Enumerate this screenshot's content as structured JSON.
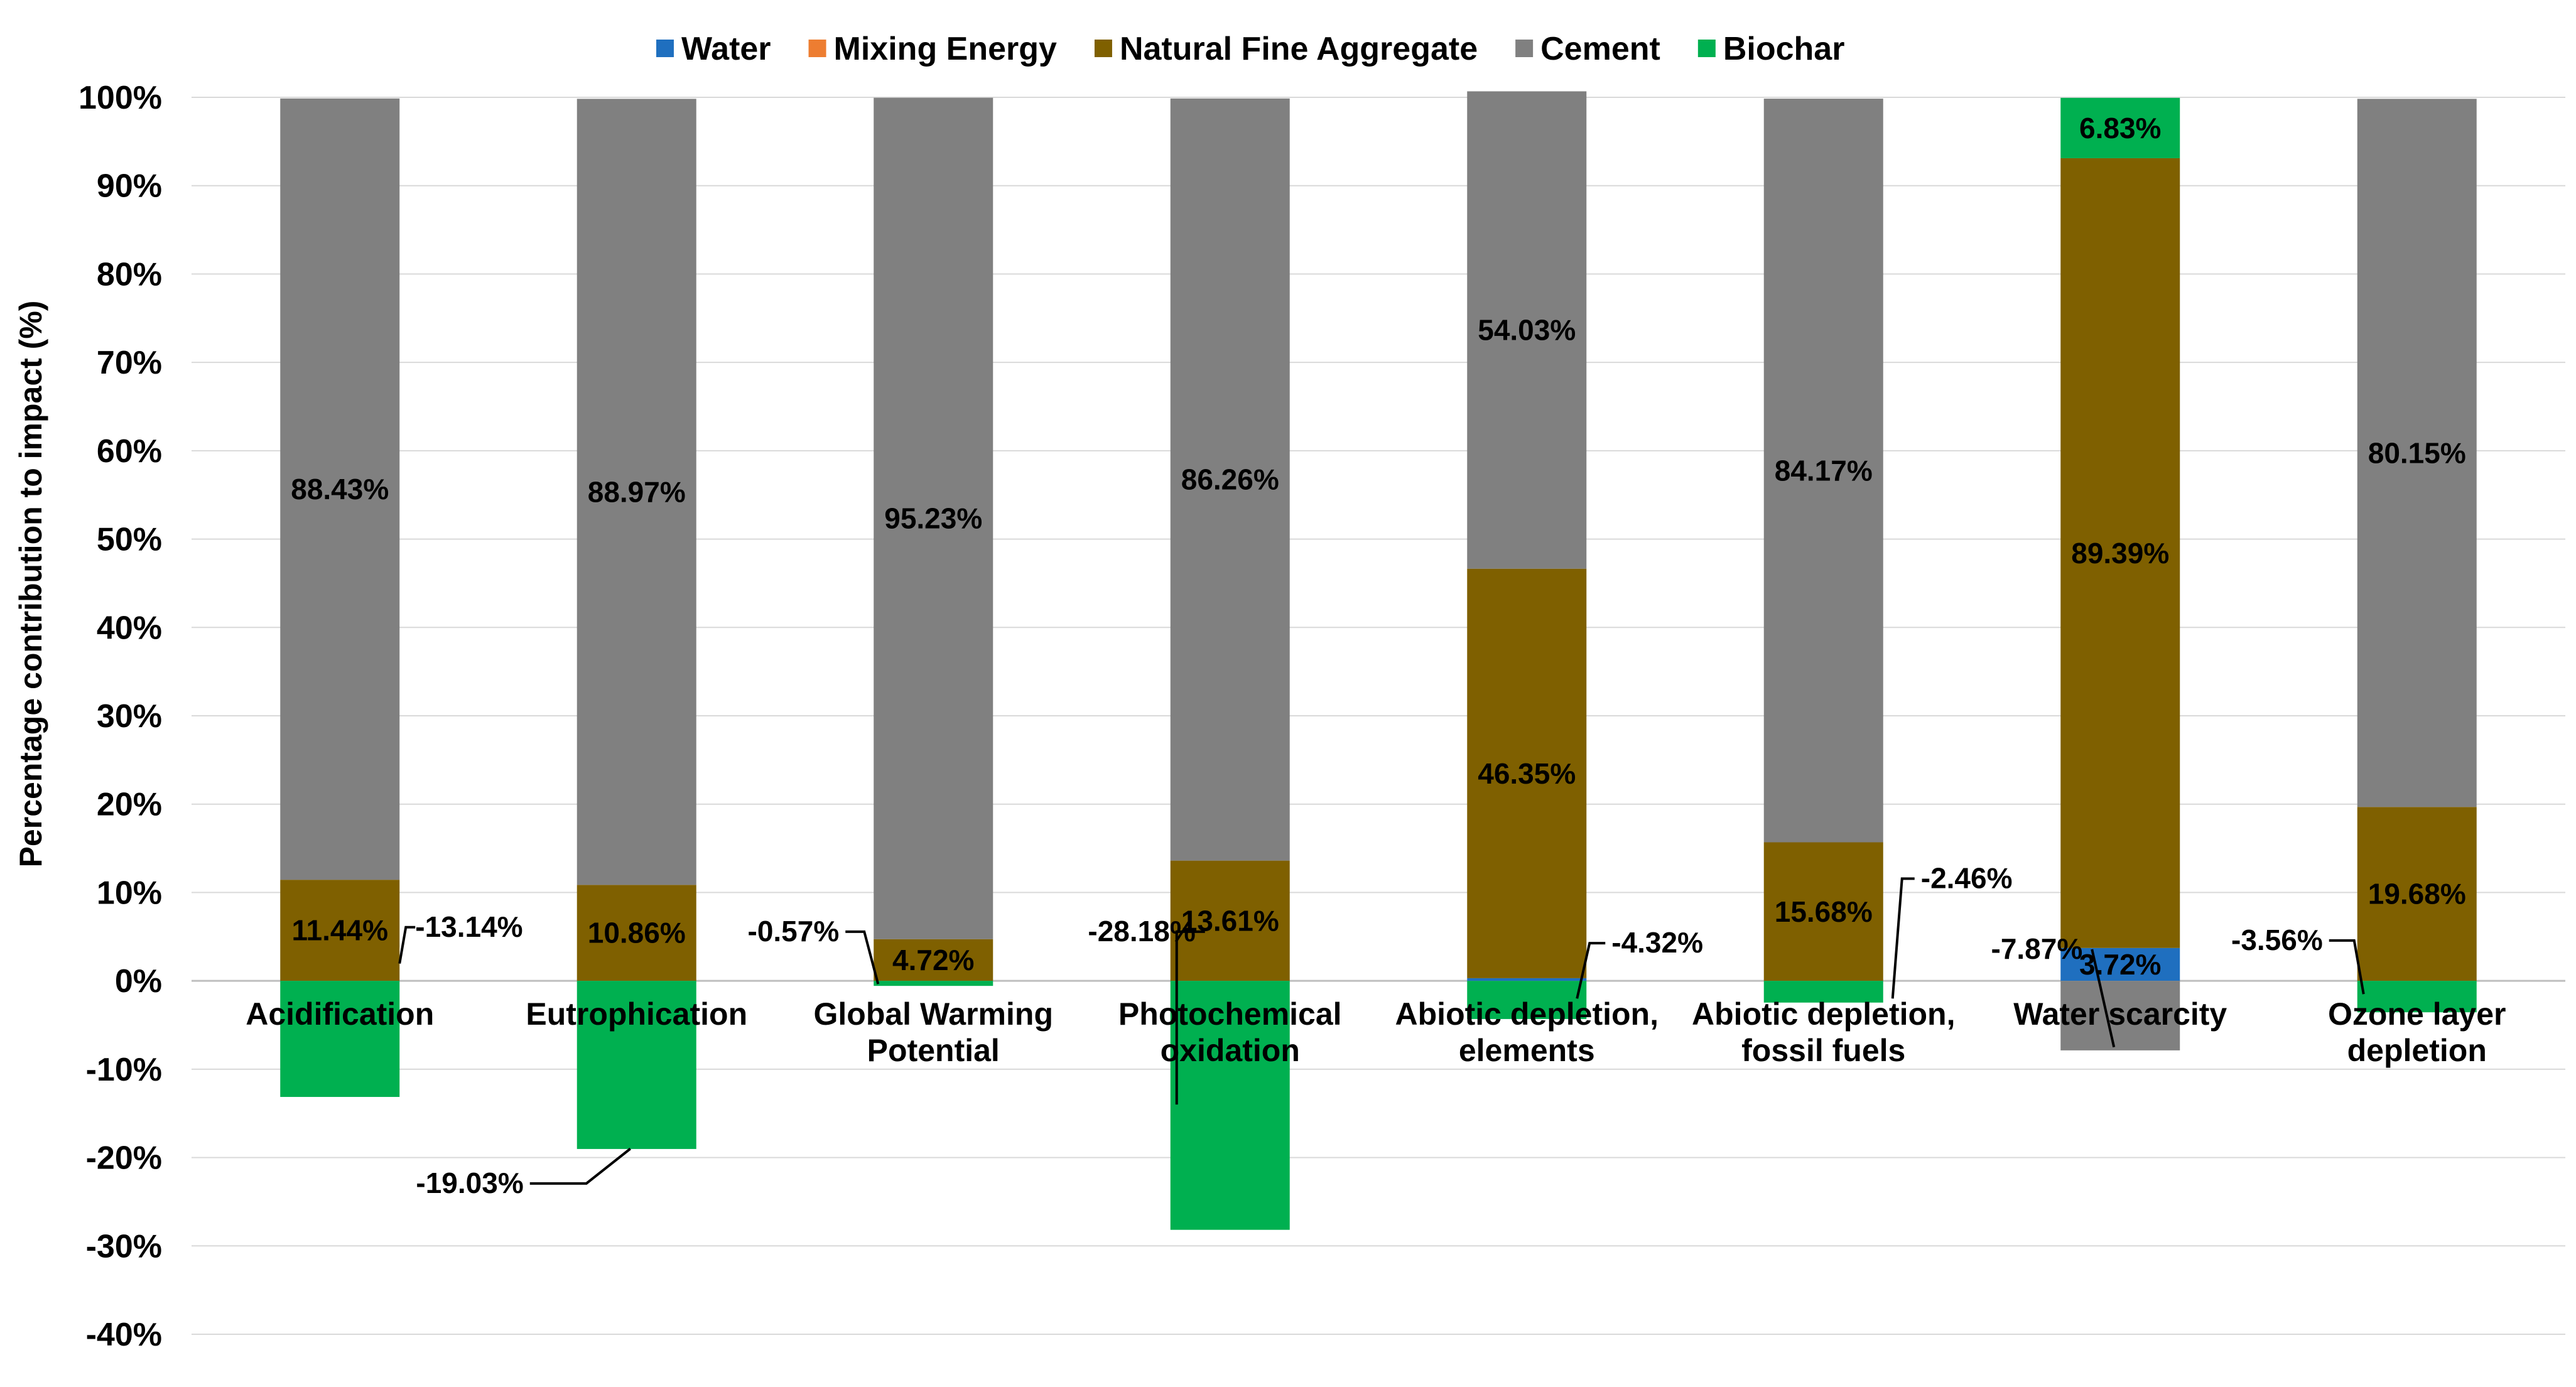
{
  "chart_data": {
    "type": "bar",
    "stacked": true,
    "title": "",
    "xlabel": "",
    "ylabel": "Percentage contribution to impact (%)",
    "ylim": [
      -40,
      100
    ],
    "ytick_step": 10,
    "yticks": [
      "100%",
      "90%",
      "80%",
      "70%",
      "60%",
      "50%",
      "40%",
      "30%",
      "20%",
      "10%",
      "0%",
      "-10%",
      "-20%",
      "-30%",
      "-40%"
    ],
    "grid": true,
    "legend_position": "top",
    "categories": [
      [
        "Acidification"
      ],
      [
        "Eutrophication"
      ],
      [
        "Global Warming",
        "Potential"
      ],
      [
        "Photochemical",
        "oxidation"
      ],
      [
        "Abiotic depletion,",
        "elements"
      ],
      [
        "Abiotic depletion,",
        "fossil fuels"
      ],
      [
        "Water scarcity"
      ],
      [
        "Ozone layer",
        "depletion"
      ]
    ],
    "series": [
      {
        "name": "Water",
        "color": "#1f6fbf",
        "values": [
          0,
          0,
          0,
          0,
          0.3,
          0,
          3.72,
          0
        ]
      },
      {
        "name": "Mixing Energy",
        "color": "#ed7d31",
        "values": [
          0,
          0,
          0,
          0,
          0,
          0,
          0,
          0
        ]
      },
      {
        "name": "Natural Fine Aggregate",
        "color": "#7f6000",
        "values": [
          11.44,
          10.86,
          4.72,
          13.61,
          46.35,
          15.68,
          89.39,
          19.68
        ]
      },
      {
        "name": "Cement",
        "color": "#808080",
        "values": [
          88.43,
          88.97,
          95.23,
          86.26,
          54.03,
          84.17,
          -7.87,
          80.15
        ]
      },
      {
        "name": "Biochar",
        "color": "#00b050",
        "values": [
          -13.14,
          -19.03,
          -0.57,
          -28.18,
          -4.32,
          -2.46,
          6.83,
          -3.56
        ]
      }
    ],
    "data_labels": [
      {
        "category": 0,
        "series": "Natural Fine Aggregate",
        "text": "11.44%"
      },
      {
        "category": 0,
        "series": "Cement",
        "text": "88.43%"
      },
      {
        "category": 0,
        "series": "Biochar",
        "text": "-13.14%",
        "callout": true
      },
      {
        "category": 1,
        "series": "Natural Fine Aggregate",
        "text": "10.86%"
      },
      {
        "category": 1,
        "series": "Cement",
        "text": "88.97%"
      },
      {
        "category": 1,
        "series": "Biochar",
        "text": "-19.03%",
        "callout": true
      },
      {
        "category": 2,
        "series": "Natural Fine Aggregate",
        "text": "4.72%"
      },
      {
        "category": 2,
        "series": "Cement",
        "text": "95.23%"
      },
      {
        "category": 2,
        "series": "Biochar",
        "text": "-0.57%",
        "callout": true
      },
      {
        "category": 3,
        "series": "Natural Fine Aggregate",
        "text": "13.61%"
      },
      {
        "category": 3,
        "series": "Cement",
        "text": "86.26%"
      },
      {
        "category": 3,
        "series": "Biochar",
        "text": "-28.18%",
        "callout": true
      },
      {
        "category": 4,
        "series": "Natural Fine Aggregate",
        "text": "46.35%"
      },
      {
        "category": 4,
        "series": "Cement",
        "text": "54.03%"
      },
      {
        "category": 4,
        "series": "Biochar",
        "text": "-4.32%",
        "callout": true
      },
      {
        "category": 5,
        "series": "Natural Fine Aggregate",
        "text": "15.68%"
      },
      {
        "category": 5,
        "series": "Cement",
        "text": "84.17%"
      },
      {
        "category": 5,
        "series": "Biochar",
        "text": "-2.46%",
        "callout": true
      },
      {
        "category": 6,
        "series": "Water",
        "text": "3.72%"
      },
      {
        "category": 6,
        "series": "Natural Fine Aggregate",
        "text": "89.39%"
      },
      {
        "category": 6,
        "series": "Biochar",
        "text": "6.83%"
      },
      {
        "category": 6,
        "series": "Cement",
        "text": "-7.87%",
        "callout": true
      },
      {
        "category": 7,
        "series": "Natural Fine Aggregate",
        "text": "19.68%"
      },
      {
        "category": 7,
        "series": "Cement",
        "text": "80.15%"
      },
      {
        "category": 7,
        "series": "Biochar",
        "text": "-3.56%",
        "callout": true
      }
    ],
    "colors": {
      "gridline": "#d9d9d9",
      "axis": "#bfbfbf",
      "text": "#000000"
    }
  }
}
